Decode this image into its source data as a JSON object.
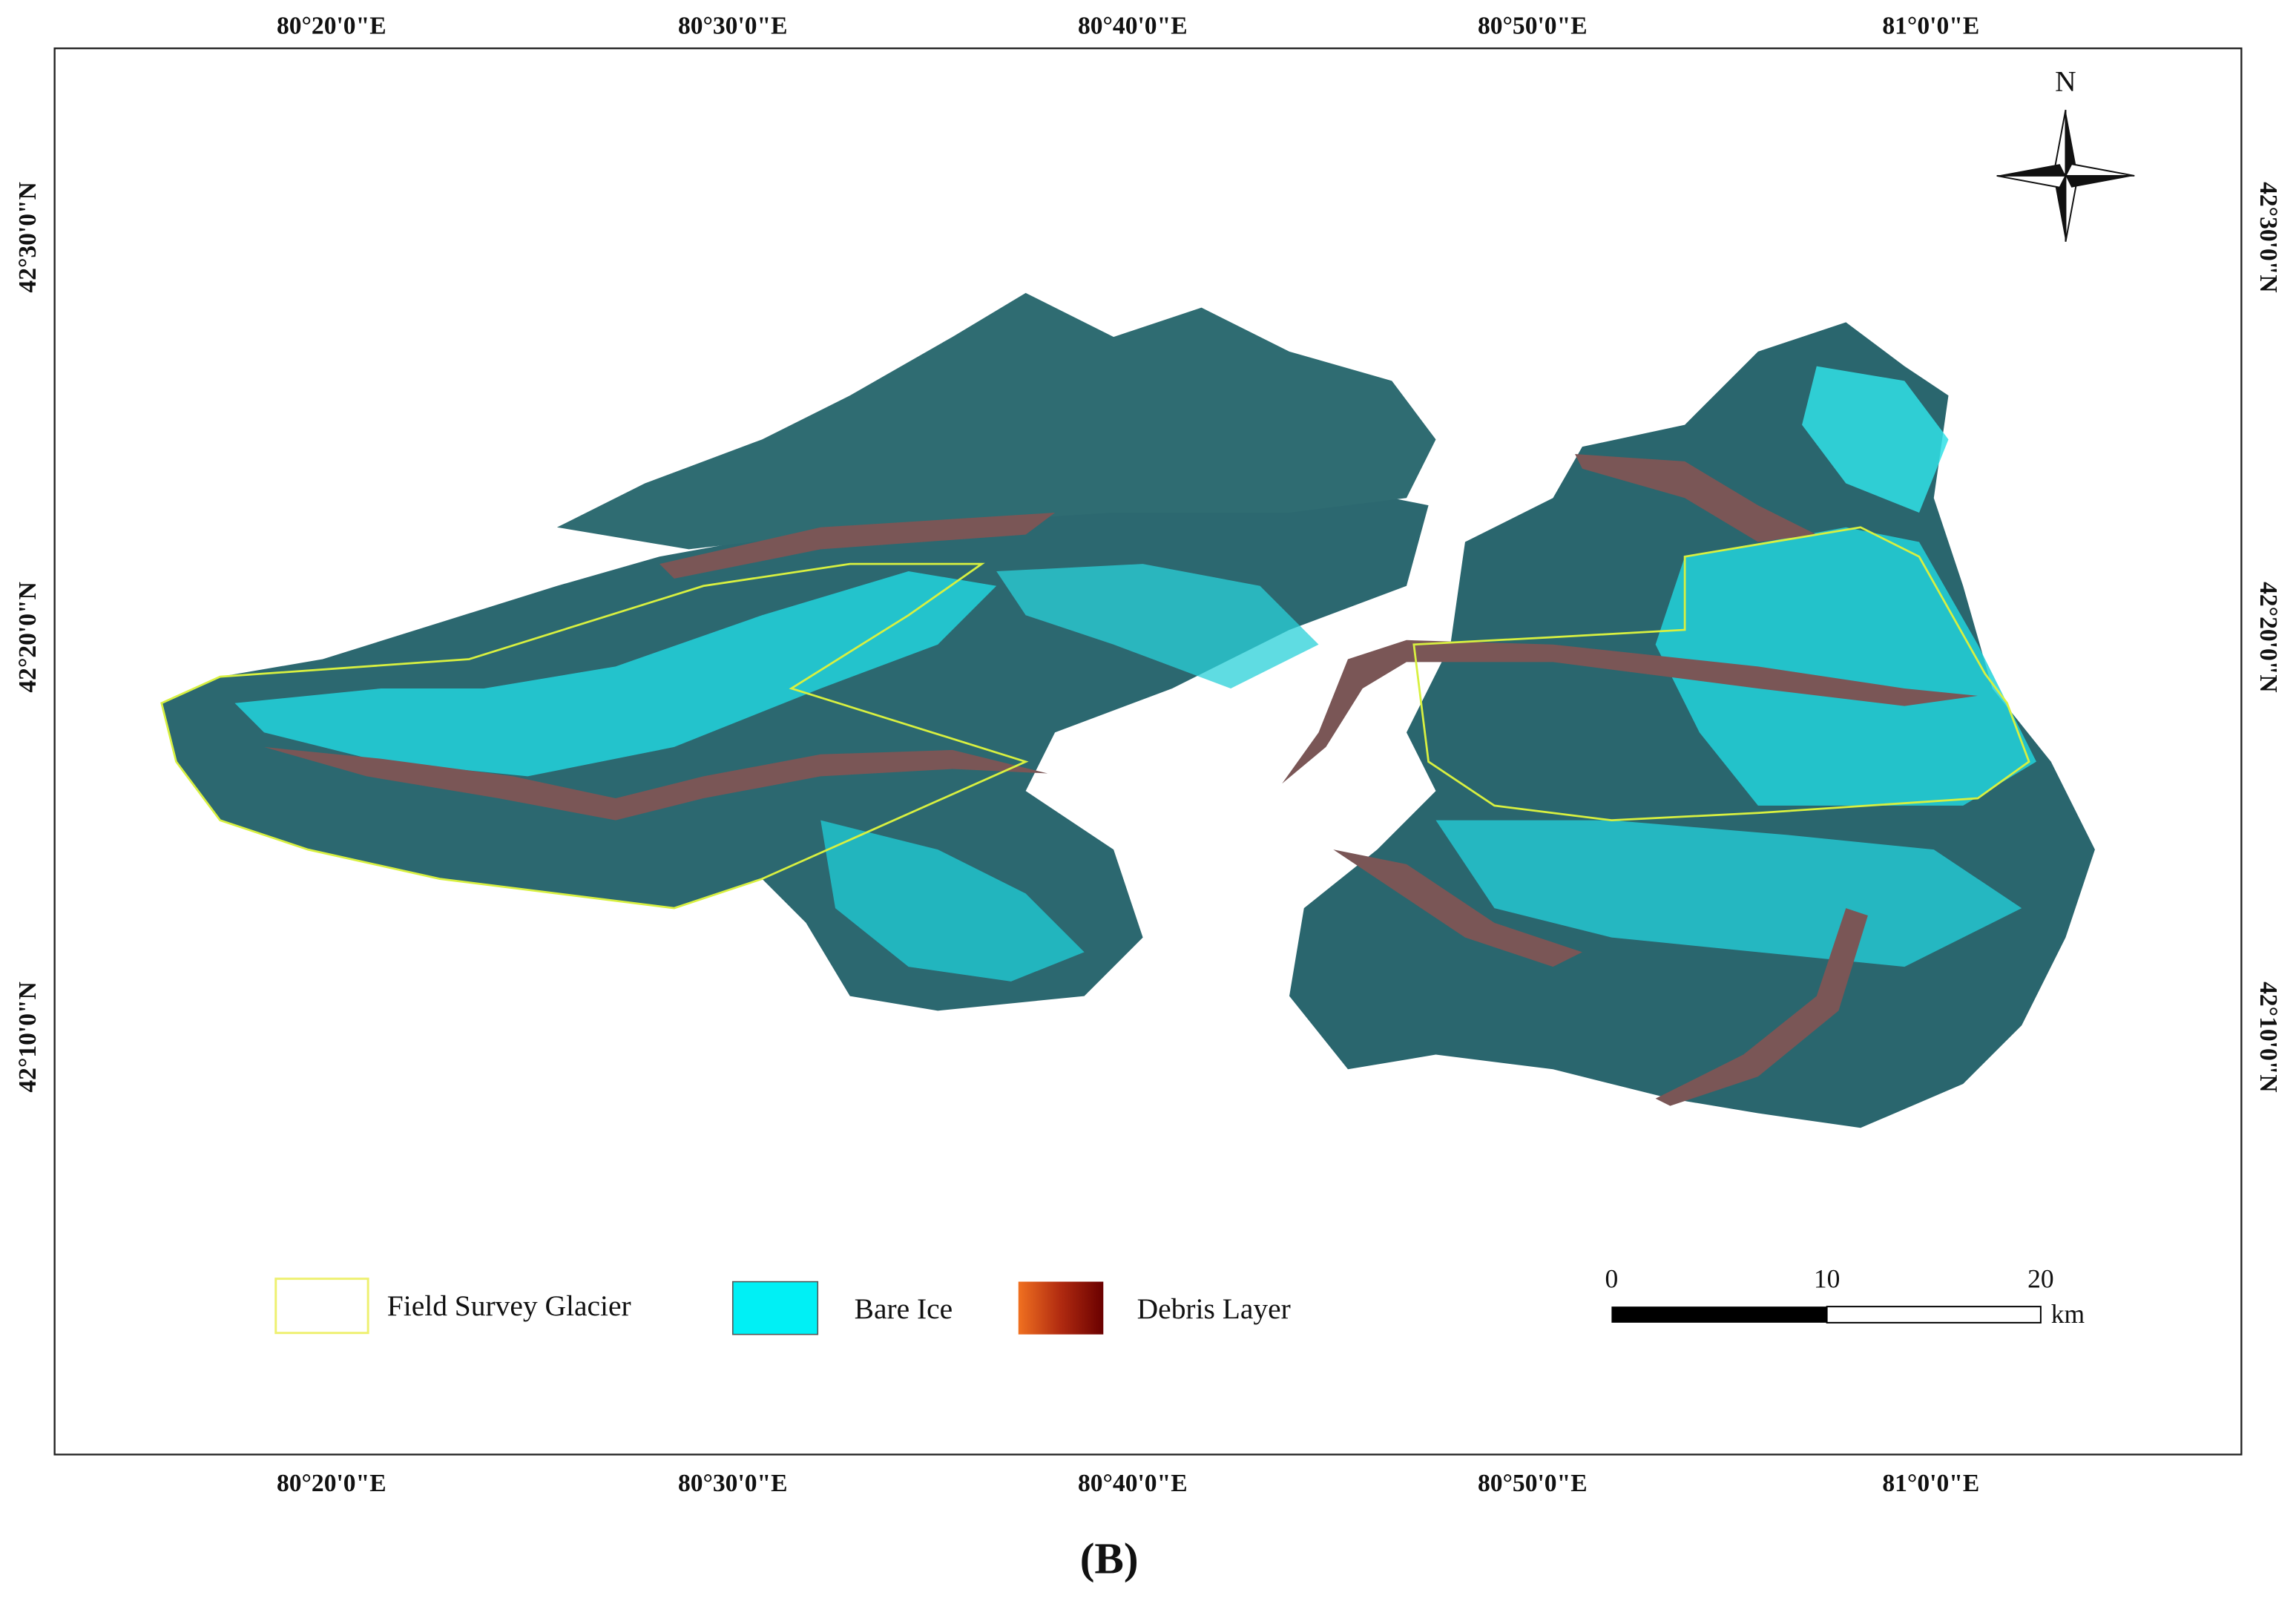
{
  "map": {
    "top_labels": [
      "80°20'0\"E",
      "80°30'0\"E",
      "80°40'0\"E",
      "80°50'0\"E",
      "81°0'0\"E"
    ],
    "bottom_labels": [
      "80°20'0\"E",
      "80°30'0\"E",
      "80°40'0\"E",
      "80°50'0\"E",
      "81°0'0\"E"
    ],
    "left_labels": [
      "42°30'0\"N",
      "42°20'0\"N",
      "42°10'0\"N"
    ],
    "right_labels": [
      "42°30'0\"N",
      "42°20'0\"N",
      "42°10'0\"N"
    ],
    "north": "N",
    "legend": [
      "Field Survey Glacier",
      "Bare Ice",
      "Debris Layer"
    ],
    "scale_bar": {
      "ticks": [
        0,
        10,
        20
      ],
      "unit": "km"
    }
  },
  "caption": "(B)"
}
